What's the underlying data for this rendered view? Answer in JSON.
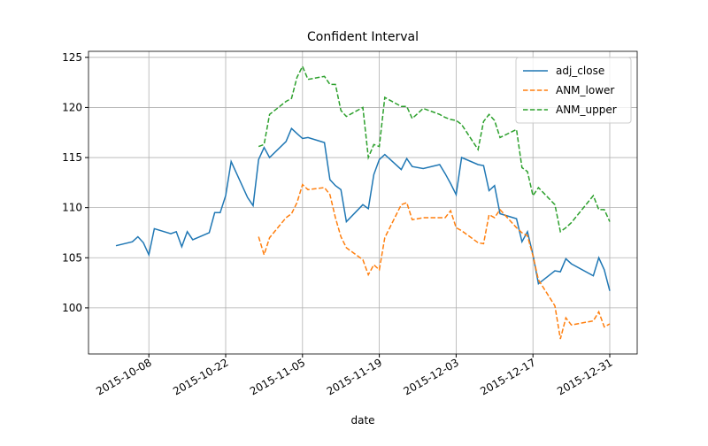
{
  "chart_data": {
    "type": "line",
    "title": "Confident Interval",
    "x_label": "date",
    "x": [
      "2015-10-02",
      "2015-10-05",
      "2015-10-06",
      "2015-10-07",
      "2015-10-08",
      "2015-10-09",
      "2015-10-12",
      "2015-10-13",
      "2015-10-14",
      "2015-10-15",
      "2015-10-16",
      "2015-10-19",
      "2015-10-20",
      "2015-10-21",
      "2015-10-22",
      "2015-10-23",
      "2015-10-26",
      "2015-10-27",
      "2015-10-28",
      "2015-10-29",
      "2015-10-30",
      "2015-11-02",
      "2015-11-03",
      "2015-11-04",
      "2015-11-05",
      "2015-11-06",
      "2015-11-09",
      "2015-11-10",
      "2015-11-11",
      "2015-11-12",
      "2015-11-13",
      "2015-11-16",
      "2015-11-17",
      "2015-11-18",
      "2015-11-19",
      "2015-11-20",
      "2015-11-23",
      "2015-11-24",
      "2015-11-25",
      "2015-11-27",
      "2015-11-30",
      "2015-12-01",
      "2015-12-02",
      "2015-12-03",
      "2015-12-04",
      "2015-12-07",
      "2015-12-08",
      "2015-12-09",
      "2015-12-10",
      "2015-12-11",
      "2015-12-14",
      "2015-12-15",
      "2015-12-16",
      "2015-12-17",
      "2015-12-18",
      "2015-12-21",
      "2015-12-22",
      "2015-12-23",
      "2015-12-24",
      "2015-12-28",
      "2015-12-29",
      "2015-12-30",
      "2015-12-31"
    ],
    "series": [
      {
        "name": "adj_close",
        "color": "#1f77b4",
        "linestyle": "solid",
        "values": [
          106.2,
          106.6,
          107.1,
          106.5,
          105.3,
          107.9,
          107.4,
          107.6,
          106.1,
          107.6,
          106.8,
          107.5,
          109.5,
          109.5,
          111.2,
          114.6,
          111.0,
          110.2,
          114.8,
          116.0,
          115.0,
          116.6,
          117.9,
          117.4,
          116.9,
          117.0,
          116.5,
          112.8,
          112.2,
          111.8,
          108.6,
          110.3,
          109.9,
          113.3,
          114.8,
          115.3,
          113.8,
          114.9,
          114.1,
          113.9,
          114.3,
          113.4,
          112.4,
          111.3,
          115.0,
          114.3,
          114.2,
          111.7,
          112.2,
          109.4,
          108.9,
          106.6,
          107.6,
          105.3,
          102.4,
          103.7,
          103.6,
          104.9,
          104.4,
          103.2,
          105.0,
          103.8,
          101.7
        ]
      },
      {
        "name": "ANM_lower",
        "color": "#ff7f0e",
        "linestyle": "dashed",
        "values": [
          null,
          null,
          null,
          null,
          null,
          null,
          null,
          null,
          null,
          null,
          null,
          null,
          null,
          null,
          null,
          null,
          null,
          null,
          107.1,
          105.3,
          107.0,
          109.0,
          109.4,
          110.5,
          112.3,
          111.8,
          112.0,
          111.3,
          109.0,
          107.1,
          106.0,
          104.8,
          103.3,
          104.3,
          103.8,
          107.0,
          110.3,
          110.5,
          108.8,
          109.0,
          109.0,
          109.0,
          109.7,
          108.0,
          107.7,
          106.5,
          106.4,
          109.3,
          109.0,
          109.8,
          108.0,
          107.5,
          107.2,
          105.2,
          102.8,
          100.2,
          96.9,
          99.0,
          98.3,
          98.7,
          99.6,
          98.1,
          98.4
        ]
      },
      {
        "name": "ANM_upper",
        "color": "#2ca02c",
        "linestyle": "dashed",
        "values": [
          null,
          null,
          null,
          null,
          null,
          null,
          null,
          null,
          null,
          null,
          null,
          null,
          null,
          null,
          null,
          null,
          null,
          null,
          116.1,
          116.3,
          119.3,
          120.6,
          120.9,
          123.0,
          124.1,
          122.8,
          123.1,
          122.3,
          122.3,
          119.7,
          119.1,
          120.0,
          115.0,
          116.3,
          116.1,
          121.0,
          120.1,
          120.1,
          118.9,
          119.9,
          119.3,
          119.0,
          118.8,
          118.7,
          118.3,
          115.8,
          118.6,
          119.3,
          118.7,
          117.0,
          117.8,
          114.0,
          113.6,
          111.2,
          112.0,
          110.3,
          107.6,
          108.0,
          108.5,
          111.2,
          109.8,
          109.8,
          108.6
        ]
      }
    ],
    "xlim": [
      "2015-09-27",
      "2016-01-05"
    ],
    "xticks": [
      "2015-10-08",
      "2015-10-22",
      "2015-11-05",
      "2015-11-19",
      "2015-12-03",
      "2015-12-17",
      "2015-12-31"
    ],
    "ylim": [
      95.4,
      125.6
    ],
    "yticks": [
      100,
      105,
      110,
      115,
      120,
      125
    ],
    "grid": true,
    "legend": "upper right"
  }
}
